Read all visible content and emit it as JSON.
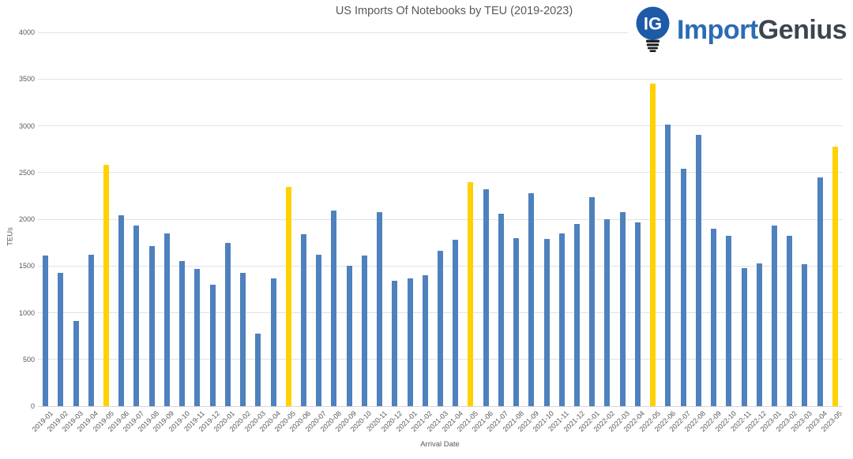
{
  "logo": {
    "icon_text": "IG",
    "brand_first": "Import",
    "brand_second": "Genius",
    "bulb_color": "#1D5AA8",
    "base_color": "#1a1d22"
  },
  "chart_data": {
    "type": "bar",
    "title": "US Imports Of Notebooks by TEU (2019-2023)",
    "xlabel": "Arrival Date",
    "ylabel": "TEUs",
    "ylim": [
      0,
      4000
    ],
    "ytick_step": 500,
    "grid": true,
    "legend_position": "none",
    "bar_color": "#4E81BD",
    "highlight_color": "#FFD100",
    "highlight_note": "May of each year shown in yellow",
    "categories": [
      "2019-01",
      "2019-02",
      "2019-03",
      "2019-04",
      "2019-05",
      "2019-06",
      "2019-07",
      "2019-08",
      "2019-09",
      "2019-10",
      "2019-11",
      "2019-12",
      "2020-01",
      "2020-02",
      "2020-03",
      "2020-04",
      "2020-05",
      "2020-06",
      "2020-07",
      "2020-08",
      "2020-09",
      "2020-10",
      "2020-11",
      "2020-12",
      "2021-01",
      "2021-02",
      "2021-03",
      "2021-04",
      "2021-05",
      "2021-06",
      "2021-07",
      "2021-08",
      "2021-09",
      "2021-10",
      "2021-11",
      "2021-12",
      "2022-01",
      "2022-02",
      "2022-03",
      "2022-04",
      "2022-05",
      "2022-06",
      "2022-07",
      "2022-08",
      "2022-09",
      "2022-10",
      "2022-11",
      "2022-12",
      "2023-01",
      "2023-02",
      "2023-03",
      "2023-04",
      "2023-05"
    ],
    "values": [
      1610,
      1430,
      910,
      1620,
      2580,
      2040,
      1930,
      1710,
      1850,
      1550,
      1470,
      1300,
      1750,
      1430,
      780,
      1370,
      2350,
      1840,
      1620,
      2090,
      1500,
      1610,
      2080,
      1340,
      1370,
      1400,
      1660,
      1780,
      2400,
      2320,
      2060,
      1800,
      2280,
      1790,
      1850,
      1950,
      2240,
      2000,
      2080,
      1970,
      3450,
      3010,
      2540,
      2900,
      1900,
      1820,
      1480,
      1530,
      1930,
      1820,
      1520,
      2450,
      2780
    ],
    "highlight_indices": [
      4,
      16,
      28,
      40,
      52
    ]
  }
}
